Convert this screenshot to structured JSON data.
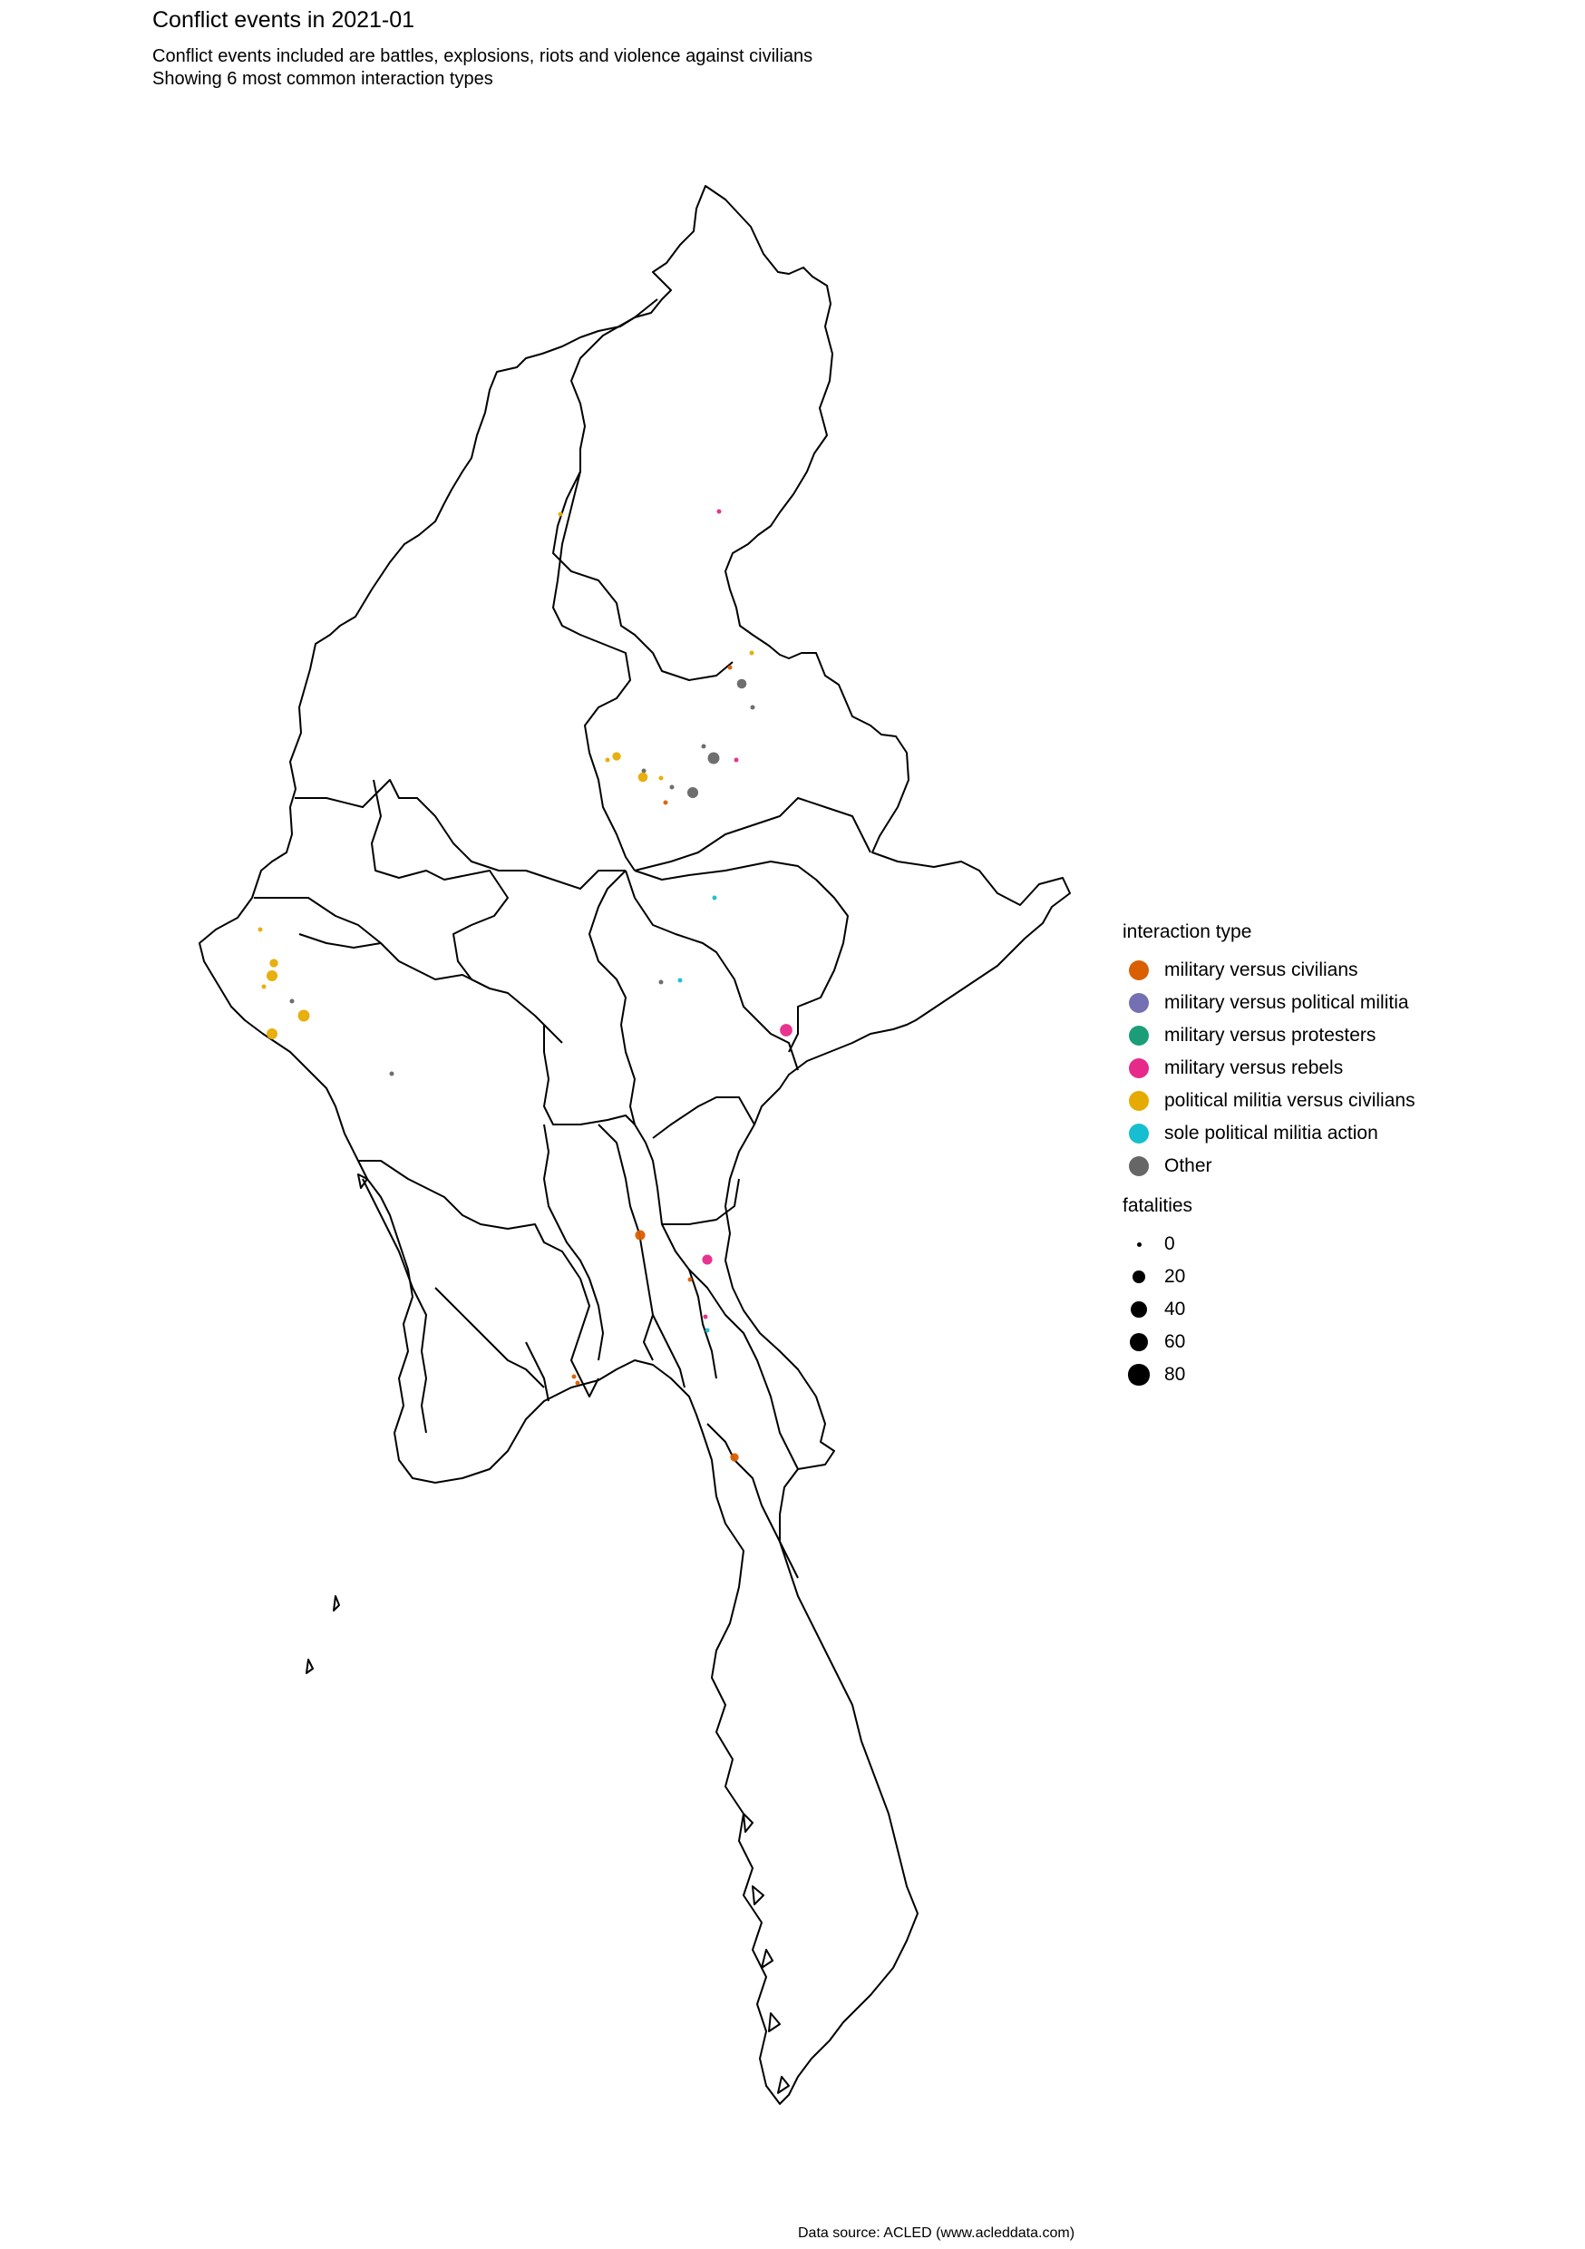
{
  "title": "Conflict events in 2021-01",
  "subtitle_lines": [
    "Conflict events included are battles, explosions, riots and violence against civilians",
    "Showing 6 most common interaction types"
  ],
  "caption": "Data source: ACLED (www.acleddata.com)",
  "legend": {
    "interaction_title": "interaction type",
    "interaction_types": [
      {
        "label": "military versus civilians",
        "color": "#d95f02"
      },
      {
        "label": "military versus political militia",
        "color": "#7570b3"
      },
      {
        "label": "military versus protesters",
        "color": "#1b9e77"
      },
      {
        "label": "military versus rebels",
        "color": "#e7298a"
      },
      {
        "label": "political militia versus civilians",
        "color": "#e6ab02"
      },
      {
        "label": "sole political militia action",
        "color": "#17becf"
      },
      {
        "label": "Other",
        "color": "#666666"
      }
    ],
    "fatalities_title": "fatalities",
    "fatalities": [
      {
        "label": "0",
        "value": 0
      },
      {
        "label": "20",
        "value": 20
      },
      {
        "label": "40",
        "value": 40
      },
      {
        "label": "60",
        "value": 60
      },
      {
        "label": "80",
        "value": 80
      }
    ]
  },
  "map_events": [
    {
      "type": "political militia versus civilians",
      "fatalities": 0
    },
    {
      "type": "military versus rebels",
      "fatalities": 0
    },
    {
      "type": "military versus civilians",
      "fatalities": 0
    },
    {
      "type": "political militia versus civilians",
      "fatalities": 0
    },
    {
      "type": "Other",
      "fatalities": 5
    },
    {
      "type": "Other",
      "fatalities": 0
    },
    {
      "type": "Other",
      "fatalities": 0
    },
    {
      "type": "Other",
      "fatalities": 10
    },
    {
      "type": "military versus rebels",
      "fatalities": 0
    },
    {
      "type": "political militia versus civilians",
      "fatalities": 3
    },
    {
      "type": "political militia versus civilians",
      "fatalities": 0
    },
    {
      "type": "Other",
      "fatalities": 0
    },
    {
      "type": "political militia versus civilians",
      "fatalities": 5
    },
    {
      "type": "political militia versus civilians",
      "fatalities": 0
    },
    {
      "type": "Other",
      "fatalities": 0
    },
    {
      "type": "Other",
      "fatalities": 8
    },
    {
      "type": "military versus civilians",
      "fatalities": 0
    },
    {
      "type": "sole political militia action",
      "fatalities": 0
    },
    {
      "type": "Other",
      "fatalities": 0
    },
    {
      "type": "sole political militia action",
      "fatalities": 0
    },
    {
      "type": "military versus rebels",
      "fatalities": 12
    },
    {
      "type": "political militia versus civilians",
      "fatalities": 0
    },
    {
      "type": "political militia versus civilians",
      "fatalities": 3
    },
    {
      "type": "political militia versus civilians",
      "fatalities": 8
    },
    {
      "type": "political militia versus civilians",
      "fatalities": 0
    },
    {
      "type": "Other",
      "fatalities": 0
    },
    {
      "type": "political militia versus civilians",
      "fatalities": 8
    },
    {
      "type": "political militia versus civilians",
      "fatalities": 10
    },
    {
      "type": "Other",
      "fatalities": 0
    },
    {
      "type": "military versus civilians",
      "fatalities": 6
    },
    {
      "type": "military versus rebels",
      "fatalities": 6
    },
    {
      "type": "military versus civilians",
      "fatalities": 0
    },
    {
      "type": "military versus rebels",
      "fatalities": 0
    },
    {
      "type": "sole political militia action",
      "fatalities": 0
    },
    {
      "type": "military versus civilians",
      "fatalities": 0
    },
    {
      "type": "military versus civilians",
      "fatalities": 0
    },
    {
      "type": "military versus civilians",
      "fatalities": 3
    }
  ]
}
